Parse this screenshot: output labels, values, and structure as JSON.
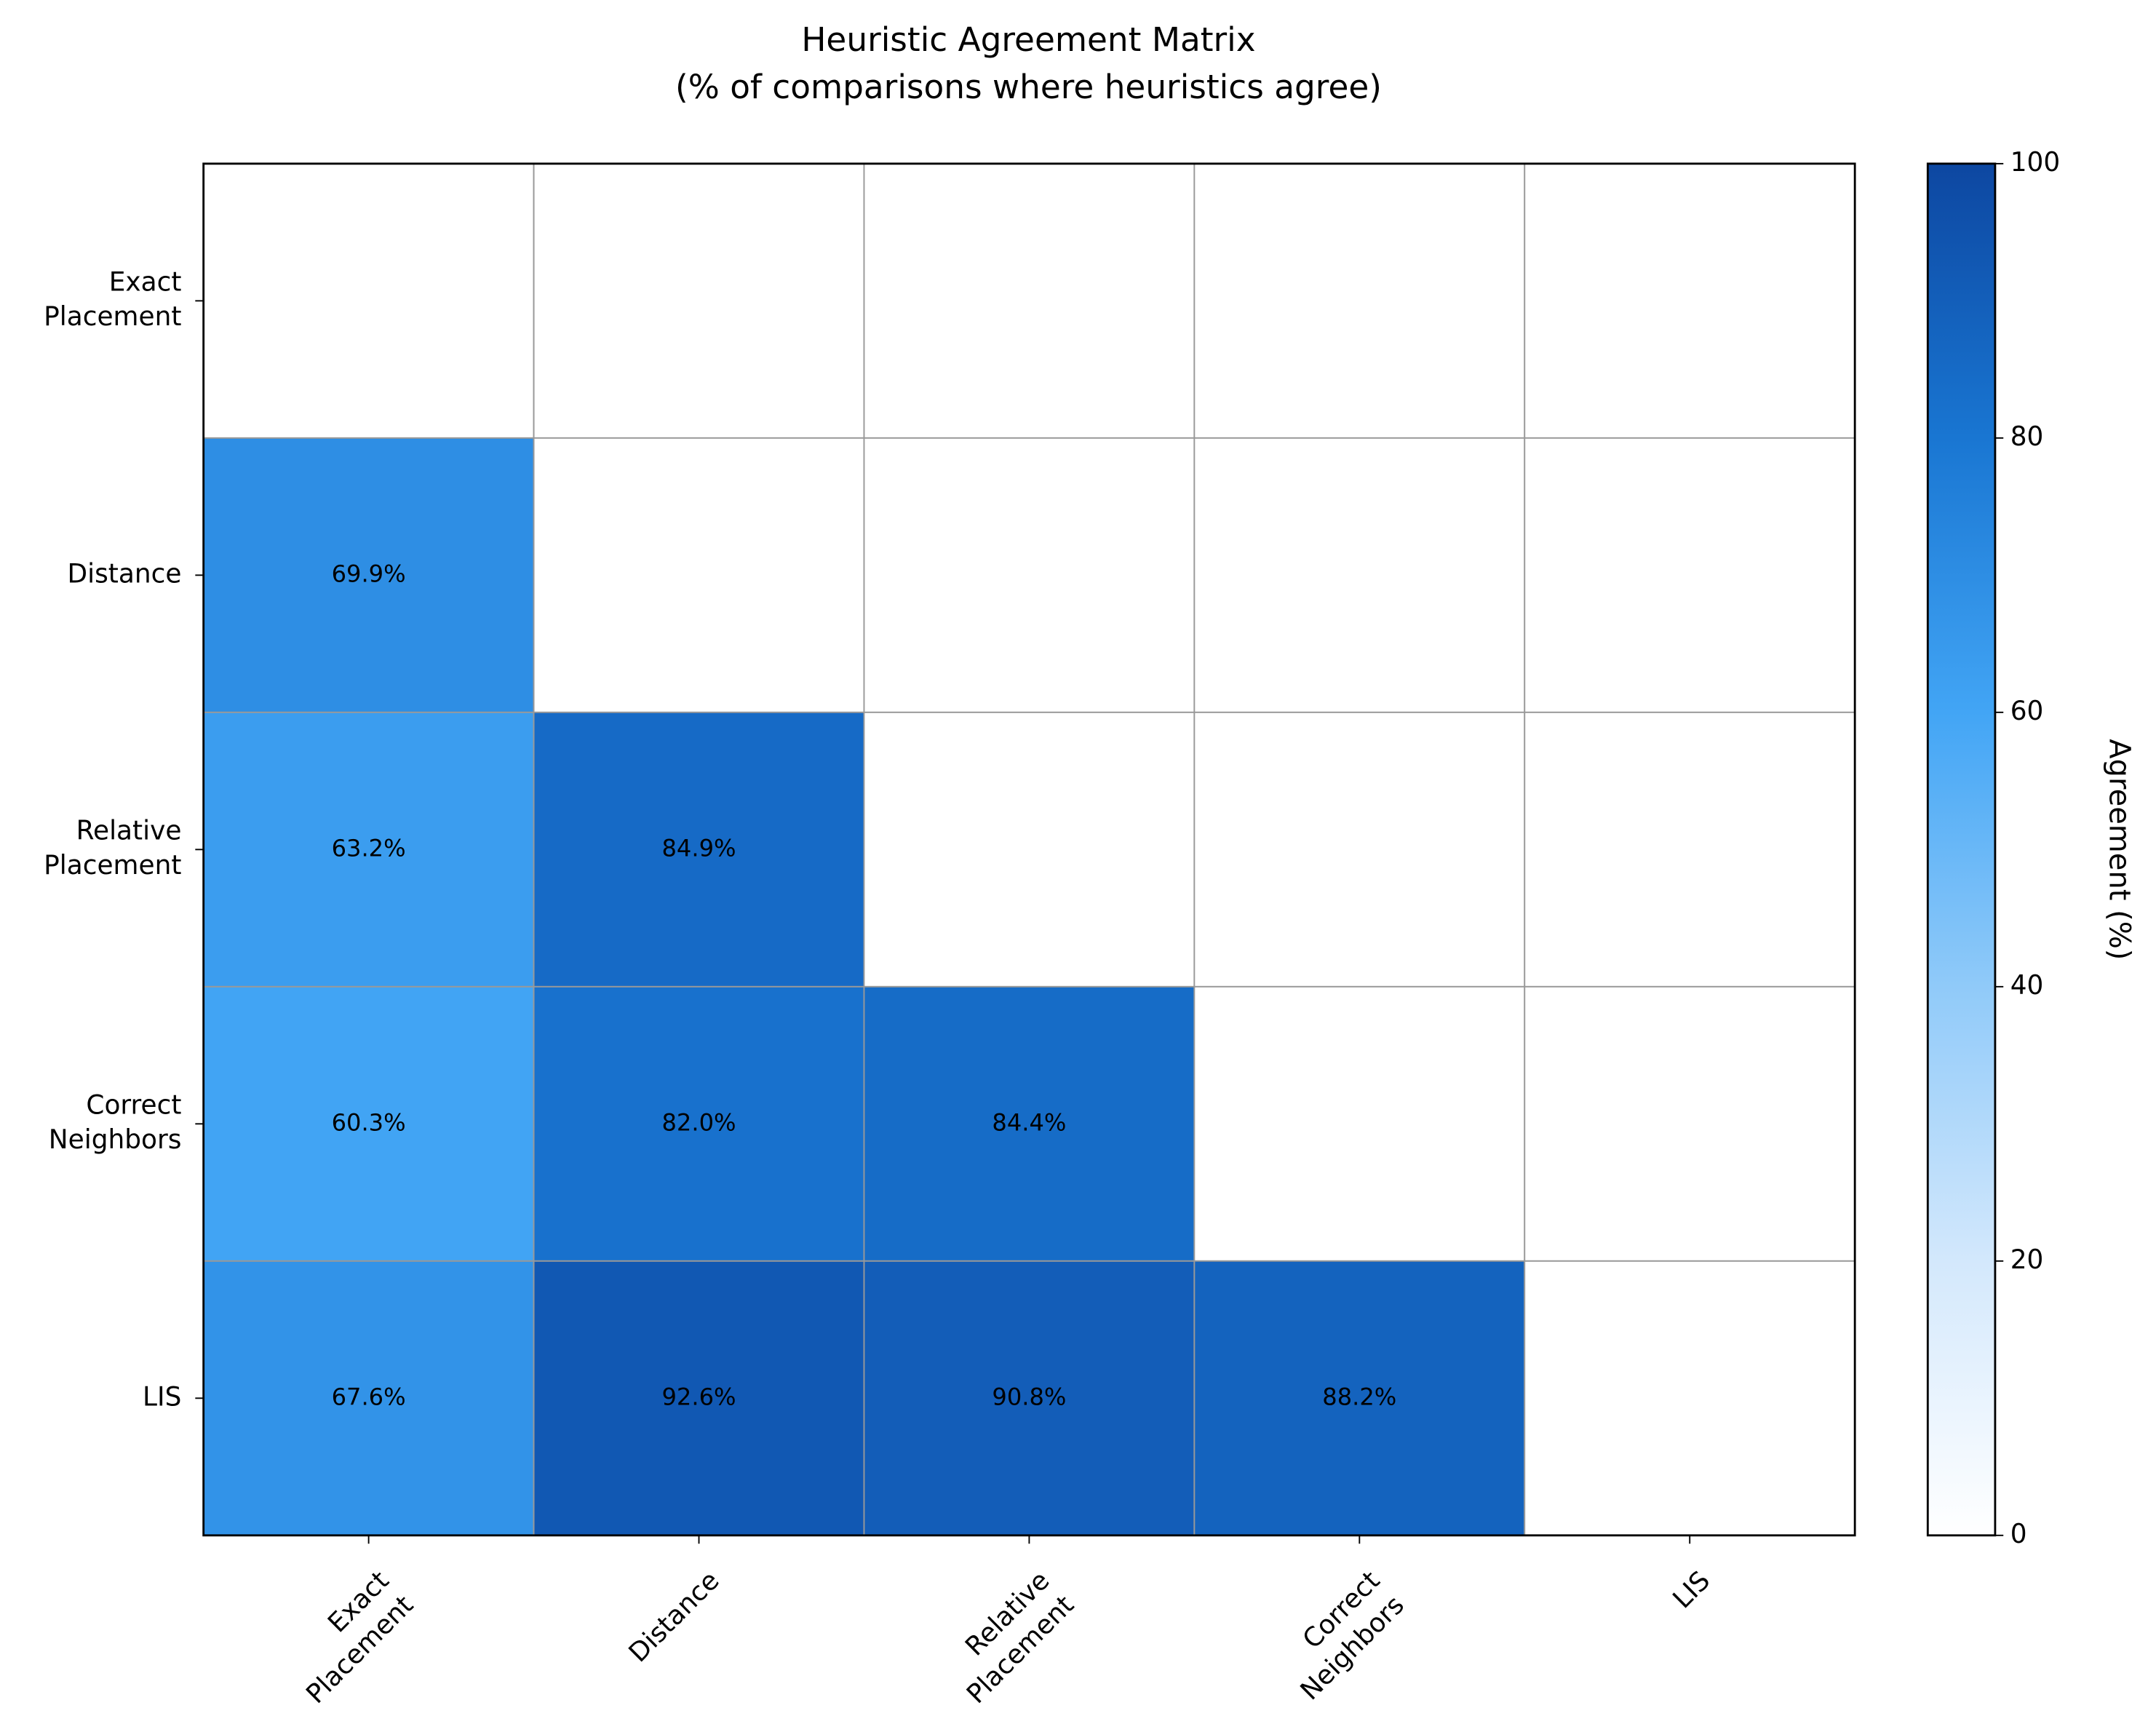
{
  "chart_data": {
    "type": "heatmap",
    "title": "Heuristic Agreement Matrix\n(% of comparisons where heuristics agree)",
    "x_categories": [
      "Exact\nPlacement",
      "Distance",
      "Relative\nPlacement",
      "Correct\nNeighbors",
      "LIS"
    ],
    "y_categories": [
      "Exact\nPlacement",
      "Distance",
      "Relative\nPlacement",
      "Correct\nNeighbors",
      "LIS"
    ],
    "values": [
      [
        null,
        null,
        null,
        null,
        null
      ],
      [
        69.9,
        null,
        null,
        null,
        null
      ],
      [
        63.2,
        84.9,
        null,
        null,
        null
      ],
      [
        60.3,
        82.0,
        84.4,
        null,
        null
      ],
      [
        67.6,
        92.6,
        90.8,
        88.2,
        null
      ]
    ],
    "value_labels": [
      [
        null,
        null,
        null,
        null,
        null
      ],
      [
        "69.9%",
        null,
        null,
        null,
        null
      ],
      [
        "63.2%",
        "84.9%",
        null,
        null,
        null
      ],
      [
        "60.3%",
        "82.0%",
        "84.4%",
        null,
        null
      ],
      [
        "67.6%",
        "92.6%",
        "90.8%",
        "88.2%",
        null
      ]
    ],
    "colormap": [
      "#ffffff",
      "#d3e8fc",
      "#90caf9",
      "#42a5f5",
      "#1976d2",
      "#0d47a1"
    ],
    "clim": [
      0,
      100
    ],
    "cticks": [
      0,
      20,
      40,
      60,
      80,
      100
    ],
    "colorbar_label": "Agreement (%)"
  }
}
